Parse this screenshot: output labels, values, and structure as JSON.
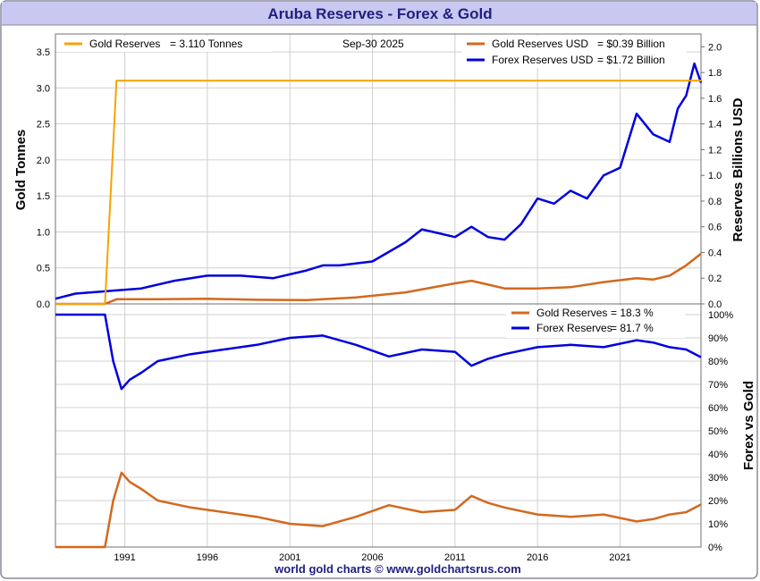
{
  "header": {
    "title": "Aruba Reserves - Forex & Gold"
  },
  "footer": {
    "credit": "world gold charts © www.goldchartsrus.com"
  },
  "colors": {
    "gold_tonnes": "#f5a300",
    "gold_usd": "#d2691e",
    "forex": "#0000dd",
    "title_bg": "#c8c8f0",
    "title_text": "#202080",
    "grid": "#d0d0d0"
  },
  "chart_data": [
    {
      "type": "line",
      "panel": "top",
      "title": "Aruba Reserves - Forex & Gold",
      "date": "Sep-30  2025",
      "ylabel_left": "Gold Tonnes",
      "ylabel_right": "Reserves Billions USD",
      "ylim_left": [
        0,
        3.75
      ],
      "ylim_right": [
        0,
        2.1
      ],
      "yticks_left": [
        "0.0",
        "0.5",
        "1.0",
        "1.5",
        "2.0",
        "2.5",
        "3.0",
        "3.5"
      ],
      "yticks_right": [
        "0.0",
        "0.2",
        "0.4",
        "0.6",
        "0.8",
        "1.0",
        "1.2",
        "1.4",
        "1.6",
        "1.8",
        "2.0"
      ],
      "xlim": [
        1986.8,
        2025.9
      ],
      "legend": [
        {
          "label": "Gold Reserves",
          "value": "=  3.110 Tonnes",
          "series": "gold_tonnes"
        },
        {
          "label": "Gold Reserves USD",
          "value": "=  $0.39 Billion",
          "series": "gold_usd"
        },
        {
          "label": "Forex Reserves USD",
          "value": "=  $1.72 Billion",
          "series": "forex_usd"
        }
      ],
      "series": {
        "gold_tonnes": {
          "name": "Gold Reserves (Tonnes)",
          "axis": "left",
          "x": [
            1986.8,
            1989.8,
            1990.5,
            2025.9
          ],
          "y": [
            0,
            0,
            3.1,
            3.1
          ]
        },
        "gold_usd": {
          "name": "Gold Reserves USD (Billion)",
          "axis": "right",
          "x": [
            1986.8,
            1989.8,
            1990.5,
            1993,
            1996,
            1999,
            2002,
            2005,
            2008,
            2011,
            2012,
            2013,
            2014,
            2016,
            2018,
            2020,
            2022,
            2023,
            2024,
            2025,
            2025.9
          ],
          "y": [
            0,
            0,
            0.036,
            0.036,
            0.04,
            0.032,
            0.03,
            0.05,
            0.09,
            0.16,
            0.18,
            0.15,
            0.12,
            0.12,
            0.13,
            0.17,
            0.2,
            0.19,
            0.22,
            0.3,
            0.39
          ]
        },
        "forex_usd": {
          "name": "Forex Reserves USD (Billion)",
          "axis": "right",
          "x": [
            1986.8,
            1988,
            1990,
            1992,
            1994,
            1996,
            1998,
            2000,
            2002,
            2003,
            2004,
            2006,
            2008,
            2009,
            2010,
            2011,
            2012,
            2013,
            2014,
            2015,
            2016,
            2017,
            2018,
            2019,
            2020,
            2021,
            2022,
            2023,
            2024,
            2024.5,
            2025,
            2025.5,
            2025.9
          ],
          "y": [
            0.04,
            0.08,
            0.1,
            0.12,
            0.18,
            0.22,
            0.22,
            0.2,
            0.26,
            0.3,
            0.3,
            0.33,
            0.48,
            0.58,
            0.55,
            0.52,
            0.6,
            0.52,
            0.5,
            0.62,
            0.82,
            0.78,
            0.88,
            0.82,
            1.0,
            1.06,
            1.48,
            1.32,
            1.26,
            1.52,
            1.62,
            1.87,
            1.72
          ]
        }
      }
    },
    {
      "type": "line",
      "panel": "bottom",
      "ylabel_right": "Forex vs Gold",
      "ylim": [
        0,
        100
      ],
      "yticks": [
        "0%",
        "10%",
        "20%",
        "30%",
        "40%",
        "50%",
        "60%",
        "70%",
        "80%",
        "90%",
        "100%"
      ],
      "xticks": [
        "1991",
        "1996",
        "2001",
        "2006",
        "2011",
        "2016",
        "2021"
      ],
      "legend": [
        {
          "label": "Gold Reserves",
          "value": "=  18.3 %",
          "series": "gold_pct"
        },
        {
          "label": "Forex Reserves",
          "value": "=  81.7 %",
          "series": "forex_pct"
        }
      ],
      "series": {
        "gold_pct": {
          "name": "Gold Reserves %",
          "x": [
            1986.8,
            1989.8,
            1990.3,
            1990.8,
            1991.3,
            1992,
            1993,
            1995,
            1997,
            1999,
            2001,
            2003,
            2005,
            2007,
            2009,
            2011,
            2012,
            2013,
            2014,
            2016,
            2018,
            2020,
            2022,
            2023,
            2024,
            2025,
            2025.9
          ],
          "y": [
            0,
            0,
            20,
            32,
            28,
            25,
            20,
            17,
            15,
            13,
            10,
            9,
            13,
            18,
            15,
            16,
            22,
            19,
            17,
            14,
            13,
            14,
            11,
            12,
            14,
            15,
            18.3
          ]
        },
        "forex_pct": {
          "name": "Forex Reserves %",
          "x": [
            1986.8,
            1989.8,
            1990.3,
            1990.8,
            1991.3,
            1992,
            1993,
            1995,
            1997,
            1999,
            2001,
            2003,
            2005,
            2007,
            2009,
            2011,
            2012,
            2013,
            2014,
            2016,
            2018,
            2020,
            2022,
            2023,
            2024,
            2025,
            2025.9
          ],
          "y": [
            100,
            100,
            80,
            68,
            72,
            75,
            80,
            83,
            85,
            87,
            90,
            91,
            87,
            82,
            85,
            84,
            78,
            81,
            83,
            86,
            87,
            86,
            89,
            88,
            86,
            85,
            81.7
          ]
        }
      }
    }
  ]
}
